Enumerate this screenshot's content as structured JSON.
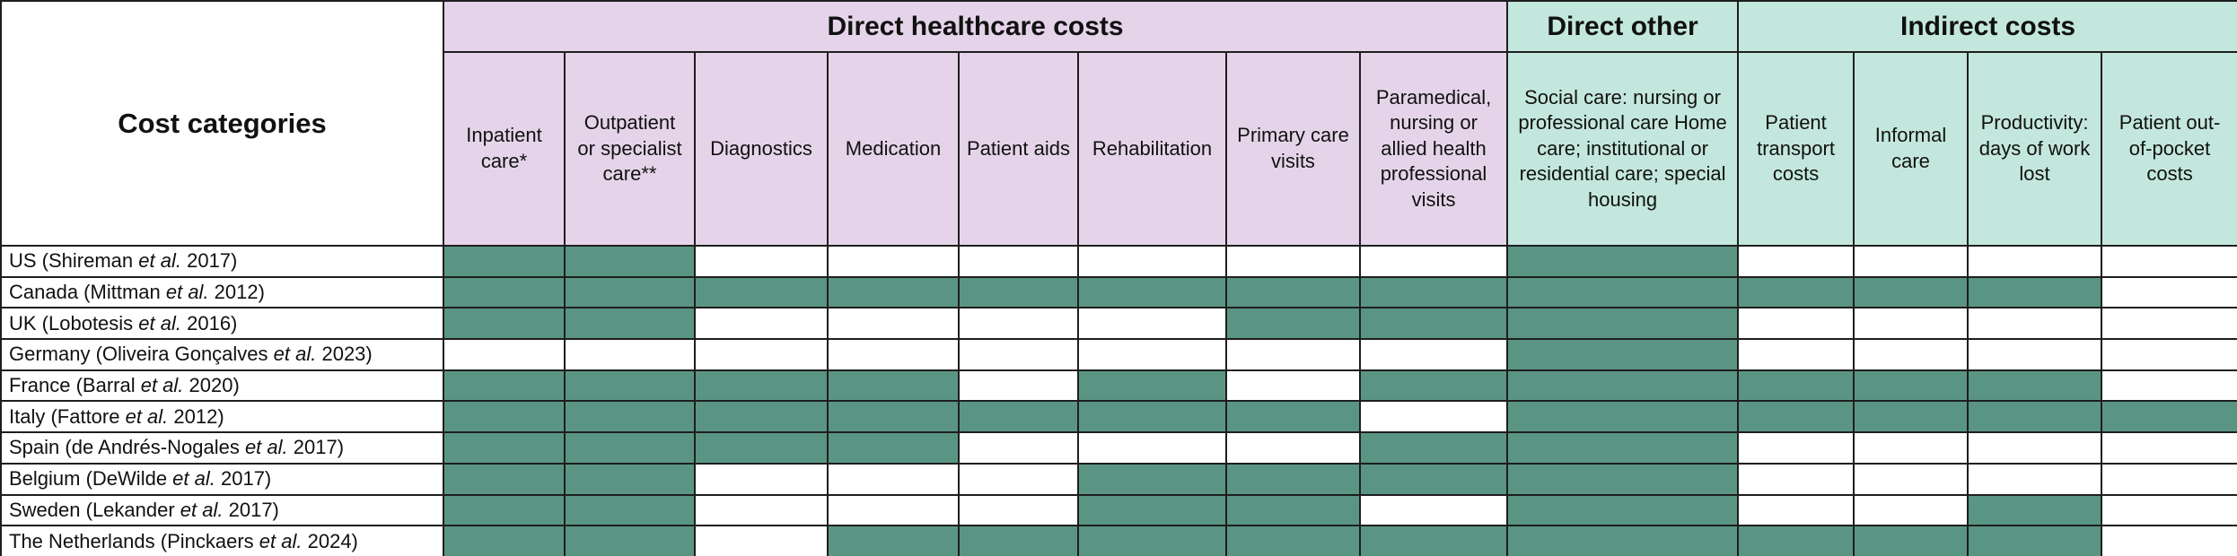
{
  "table": {
    "corner": "Cost categories",
    "groups": [
      {
        "label": "Direct healthcare costs",
        "span": 8,
        "color": "#e5d4e9"
      },
      {
        "label": "Direct other",
        "span": 1,
        "color": "#c3e7dd"
      },
      {
        "label": "Indirect costs",
        "span": 4,
        "color": "#c3e7dd"
      }
    ],
    "columns": [
      "Inpatient care*",
      "Outpatient or specialist care**",
      "Diagnostics",
      "Medication",
      "Patient aids",
      "Rehabilitation",
      "Primary care visits",
      "Paramedical, nursing or allied health professional visits",
      "Social care: nursing or professional care Home care; institutional or residential care; special housing",
      "Patient transport costs",
      "Informal care",
      "Productivity: days of work lost",
      "Patient out-of-pocket costs"
    ],
    "rows": [
      {
        "label": [
          "US (Shireman ",
          "et al.",
          " 2017)"
        ],
        "cells": [
          true,
          true,
          false,
          false,
          false,
          false,
          false,
          false,
          true,
          false,
          false,
          false,
          false
        ]
      },
      {
        "label": [
          "Canada (Mittman ",
          "et al.",
          " 2012)"
        ],
        "cells": [
          true,
          true,
          true,
          true,
          true,
          true,
          true,
          true,
          true,
          true,
          true,
          true,
          false
        ]
      },
      {
        "label": [
          "UK (Lobotesis ",
          "et al.",
          " 2016)"
        ],
        "cells": [
          true,
          true,
          false,
          false,
          false,
          false,
          true,
          true,
          true,
          false,
          false,
          false,
          false
        ]
      },
      {
        "label": [
          "Germany (Oliveira Gonçalves ",
          "et al.",
          " 2023)"
        ],
        "cells": [
          false,
          false,
          false,
          false,
          false,
          false,
          false,
          false,
          true,
          false,
          false,
          false,
          false
        ]
      },
      {
        "label": [
          "France (Barral ",
          "et al.",
          " 2020)"
        ],
        "cells": [
          true,
          true,
          true,
          true,
          false,
          true,
          false,
          true,
          true,
          true,
          true,
          true,
          false
        ]
      },
      {
        "label": [
          "Italy (Fattore ",
          "et al.",
          " 2012)"
        ],
        "cells": [
          true,
          true,
          true,
          true,
          true,
          true,
          true,
          false,
          true,
          true,
          true,
          true,
          true
        ]
      },
      {
        "label": [
          "Spain (de Andrés-Nogales ",
          "et al.",
          " 2017)"
        ],
        "cells": [
          true,
          true,
          true,
          true,
          false,
          false,
          false,
          true,
          true,
          false,
          false,
          false,
          false
        ]
      },
      {
        "label": [
          "Belgium (DeWilde ",
          "et al.",
          " 2017)"
        ],
        "cells": [
          true,
          true,
          false,
          false,
          false,
          true,
          true,
          true,
          true,
          false,
          false,
          false,
          false
        ]
      },
      {
        "label": [
          "Sweden (Lekander ",
          "et al.",
          " 2017)"
        ],
        "cells": [
          true,
          true,
          false,
          false,
          false,
          true,
          true,
          false,
          true,
          false,
          false,
          true,
          false
        ]
      },
      {
        "label": [
          "The Netherlands (Pinckaers ",
          "et al.",
          " 2024)"
        ],
        "cells": [
          true,
          true,
          false,
          true,
          true,
          true,
          true,
          true,
          true,
          true,
          true,
          true,
          false
        ]
      }
    ]
  }
}
